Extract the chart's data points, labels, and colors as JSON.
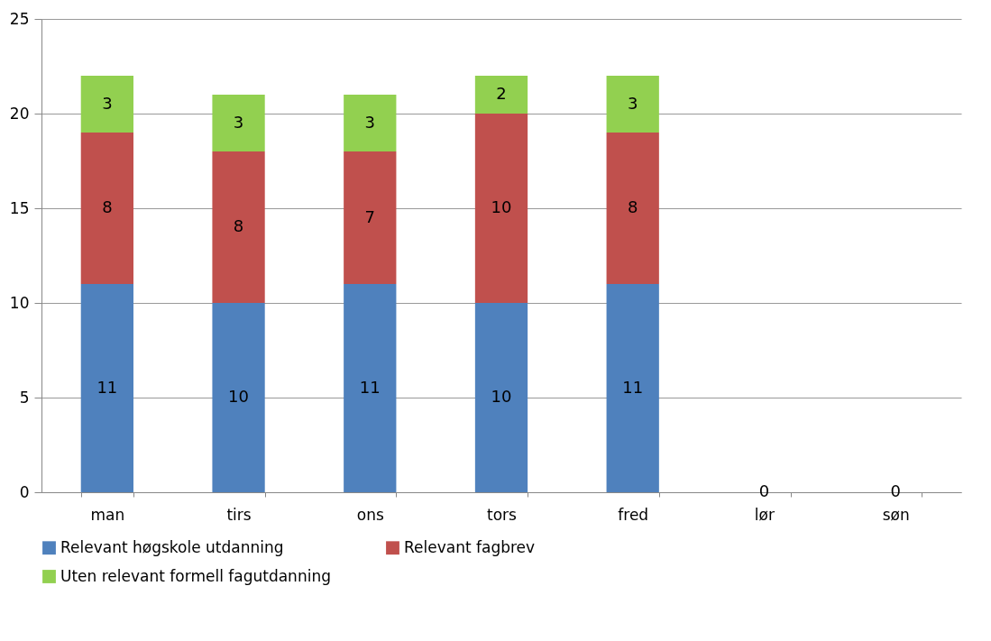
{
  "chart_data": {
    "type": "bar",
    "stacked": true,
    "categories": [
      "man",
      "tirs",
      "ons",
      "tors",
      "fred",
      "lør",
      "søn"
    ],
    "series": [
      {
        "name": "Relevant høgskole utdanning",
        "color": "#4f81bd",
        "values": [
          11,
          10,
          11,
          10,
          11,
          0,
          0
        ],
        "value_labels": [
          "11",
          "10",
          "11",
          "10",
          "11",
          "0",
          "0"
        ]
      },
      {
        "name": "Relevant fagbrev",
        "color": "#c0504d",
        "values": [
          8,
          8,
          7,
          10,
          8,
          0,
          0
        ],
        "value_labels": [
          "8",
          "8",
          "7",
          "10",
          "8",
          null,
          null
        ]
      },
      {
        "name": "Uten relevant formell fagutdanning",
        "color": "#92d050",
        "values": [
          3,
          3,
          3,
          2,
          3,
          0,
          0
        ],
        "value_labels": [
          "3",
          "3",
          "3",
          "2",
          "3",
          null,
          null
        ]
      }
    ],
    "ylim": [
      0,
      25
    ],
    "yticks": [
      0,
      5,
      10,
      15,
      20,
      25
    ],
    "grid": "y",
    "legend": "bottom"
  }
}
